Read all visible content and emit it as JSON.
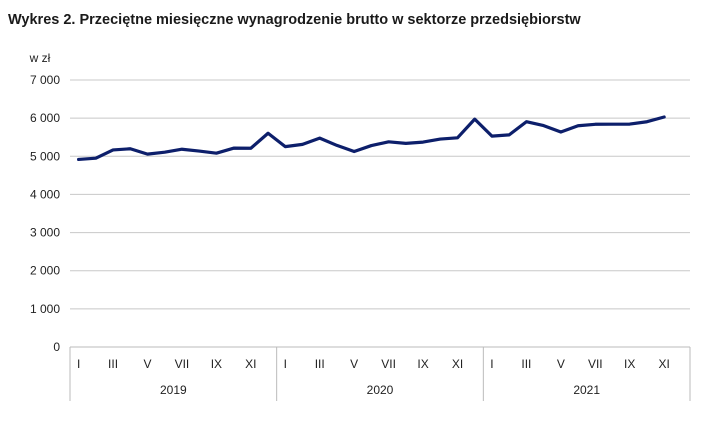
{
  "chart_data": {
    "type": "line",
    "title": "Wykres 2. Przeciętne miesięczne wynagrodzenie brutto w sektorze przedsiębiorstw",
    "ylabel": "w zł",
    "ylim": [
      0,
      7000
    ],
    "yticks": [
      0,
      1000,
      2000,
      3000,
      4000,
      5000,
      6000,
      7000
    ],
    "ytick_labels": [
      "0",
      "1 000",
      "2 000",
      "3 000",
      "4 000",
      "5 000",
      "6 000",
      "7 000"
    ],
    "grid": true,
    "month_labels": [
      "I",
      "III",
      "V",
      "VII",
      "IX",
      "XI"
    ],
    "years": [
      "2019",
      "2020",
      "2021"
    ],
    "color": "#0d1f6b",
    "series": [
      {
        "values": [
          4917,
          4950,
          5167,
          5197,
          5056,
          5108,
          5185,
          5137,
          5081,
          5213,
          5211,
          5604,
          5253,
          5312,
          5476,
          5285,
          5126,
          5281,
          5380,
          5339,
          5372,
          5451,
          5485,
          5974,
          5529,
          5561,
          5906,
          5805,
          5637,
          5800,
          5839,
          5841,
          5844,
          5906,
          6030
        ]
      }
    ]
  }
}
